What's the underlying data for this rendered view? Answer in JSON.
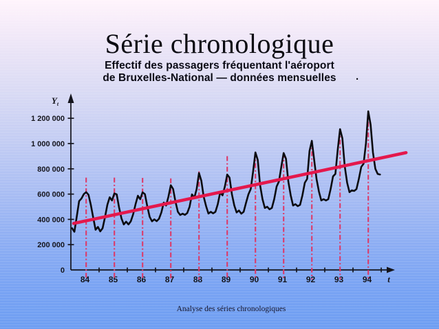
{
  "slide": {
    "title": "Série chronologique",
    "subtitle_line1": "Effectif des passagers fréquentant l'aéroport",
    "subtitle_line2": "de Bruxelles-National — données mensuelles",
    "subtitle_period": ".",
    "footer": "Analyse des séries chronologiques"
  },
  "colors": {
    "background_top": "#fff4fc",
    "background_bottom": "#6d9df2",
    "curve": "#0b0b0f",
    "trend_line": "#e4184c",
    "peak_marker_line": "#dc3a68",
    "axis": "#14141c",
    "text": "#0a0a14"
  },
  "chart_data": {
    "type": "line",
    "description": "Monthly passenger counts at Brussels-National airport, 1984-1994, with linear trend line and red dash-dot vertical markers on each summer seasonal peak",
    "x_axis_label": "t",
    "y_axis_label": "Y",
    "y_axis_label_subscript": "t",
    "xlim_years": [
      1984,
      1995.9
    ],
    "ylim": [
      0,
      1365000
    ],
    "grid": false,
    "legend": "none",
    "x_tick_labels": [
      "84",
      "85",
      "86",
      "87",
      "88",
      "89",
      "90",
      "91",
      "92",
      "93",
      "94"
    ],
    "y_tick_values": [
      0,
      200000,
      400000,
      600000,
      800000,
      1000000,
      1200000
    ],
    "y_tick_labels": [
      "0",
      "200 000",
      "400 000",
      "600 000",
      "800 000",
      "1 000 000",
      "1 200 000"
    ],
    "series_by_year": [
      {
        "year": 1984,
        "values": [
          330000,
          302000,
          420000,
          545000,
          565000,
          600000,
          615000,
          595000,
          515000,
          413000,
          318000,
          340000
        ]
      },
      {
        "year": 1985,
        "values": [
          305000,
          330000,
          415000,
          515000,
          575000,
          550000,
          605000,
          598000,
          495000,
          408000,
          360000,
          382000
        ]
      },
      {
        "year": 1986,
        "values": [
          360000,
          385000,
          440000,
          520000,
          587000,
          560000,
          614000,
          600000,
          505000,
          420000,
          385000,
          400000
        ]
      },
      {
        "year": 1987,
        "values": [
          386000,
          405000,
          455000,
          533000,
          510000,
          580000,
          670000,
          640000,
          540000,
          460000,
          435000,
          445000
        ]
      },
      {
        "year": 1988,
        "values": [
          436000,
          450000,
          500000,
          598000,
          570000,
          640000,
          767000,
          706000,
          580000,
          505000,
          446000,
          460000
        ]
      },
      {
        "year": 1989,
        "values": [
          448000,
          460000,
          520000,
          614000,
          590000,
          660000,
          755000,
          730000,
          600000,
          510000,
          455000,
          470000
        ]
      },
      {
        "year": 1990,
        "values": [
          445000,
          460000,
          530000,
          598000,
          640000,
          777000,
          930000,
          870000,
          670000,
          560000,
          490000,
          500000
        ]
      },
      {
        "year": 1991,
        "values": [
          480000,
          490000,
          560000,
          660000,
          700000,
          815000,
          925000,
          880000,
          700000,
          590000,
          510000,
          520000
        ]
      },
      {
        "year": 1992,
        "values": [
          505000,
          515000,
          590000,
          690000,
          720000,
          940000,
          1022000,
          870000,
          720000,
          620000,
          550000,
          560000
        ]
      },
      {
        "year": 1993,
        "values": [
          550000,
          560000,
          640000,
          740000,
          760000,
          950000,
          1114000,
          1040000,
          820000,
          690000,
          615000,
          630000
        ]
      },
      {
        "year": 1994,
        "values": [
          625000,
          640000,
          720000,
          815000,
          840000,
          1000000,
          1255000,
          1150000,
          930000,
          800000,
          760000,
          755000
        ]
      }
    ],
    "trend_line": {
      "start_year": 1984.1,
      "start_value": 368000,
      "end_year": 1995.88,
      "end_value": 928000
    },
    "seasonal_peak_marker_month": 7,
    "seasonal_peak_marker_tops": [
      730000,
      730000,
      728000,
      724000,
      780000,
      900000,
      928000,
      925000,
      1022000,
      1114000,
      1255000
    ]
  }
}
